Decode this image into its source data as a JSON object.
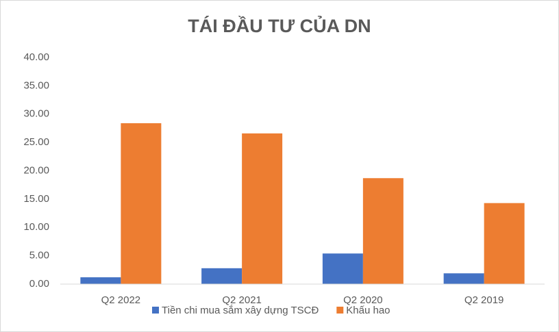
{
  "chart_data": {
    "type": "bar",
    "title": "TÁI ĐẦU TƯ CỦA DN",
    "categories": [
      "Q2 2022",
      "Q2 2021",
      "Q2 2020",
      "Q2 2019"
    ],
    "series": [
      {
        "name": "Tiền chi mua sắm xây dựng TSCĐ",
        "color": "#4472c4",
        "values": [
          1.2,
          2.8,
          5.4,
          1.9
        ]
      },
      {
        "name": "Khấu hao",
        "color": "#ed7d31",
        "values": [
          28.4,
          26.6,
          18.7,
          14.3
        ]
      }
    ],
    "ylim": [
      0,
      40
    ],
    "yticks": [
      {
        "value": 0,
        "label": "0.00"
      },
      {
        "value": 5,
        "label": "5.00"
      },
      {
        "value": 10,
        "label": "10.00"
      },
      {
        "value": 15,
        "label": "15.00"
      },
      {
        "value": 20,
        "label": "20.00"
      },
      {
        "value": 25,
        "label": "25.00"
      },
      {
        "value": 30,
        "label": "30.00"
      },
      {
        "value": 35,
        "label": "35.00"
      },
      {
        "value": 40,
        "label": "40.00"
      }
    ],
    "grid": false,
    "legend": "bottom"
  }
}
